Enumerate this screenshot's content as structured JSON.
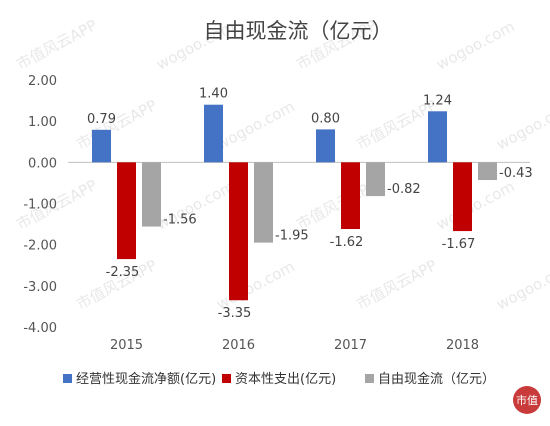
{
  "chart_data": {
    "type": "bar",
    "title": "自由现金流（亿元）",
    "categories": [
      "2015",
      "2016",
      "2017",
      "2018"
    ],
    "series": [
      {
        "name": "经营性现金流净额(亿元)",
        "color": "#4472c4",
        "values": [
          0.79,
          1.4,
          0.8,
          1.24
        ],
        "labels": [
          "0.79",
          "1.40",
          "0.80",
          "1.24"
        ]
      },
      {
        "name": "资本性支出(亿元)",
        "color": "#c00000",
        "values": [
          -2.35,
          -3.35,
          -1.62,
          -1.67
        ],
        "labels": [
          "-2.35",
          "-3.35",
          "-1.62",
          "-1.67"
        ]
      },
      {
        "name": "自由现金流（亿元）",
        "color": "#a5a5a5",
        "values": [
          -1.56,
          -1.95,
          -0.82,
          -0.43
        ],
        "labels": [
          "-1.56",
          "-1.95",
          "-0.82",
          "-0.43"
        ]
      }
    ],
    "yticks": [
      "2.00",
      "1.00",
      "0.00",
      "-1.00",
      "-2.00",
      "-3.00",
      "-4.00"
    ],
    "ylim": [
      -4,
      2
    ],
    "grid": false,
    "legend": "bottom"
  },
  "watermark": {
    "text": "市值风云APP",
    "site": "wogoo.com",
    "stamp": "市值"
  }
}
